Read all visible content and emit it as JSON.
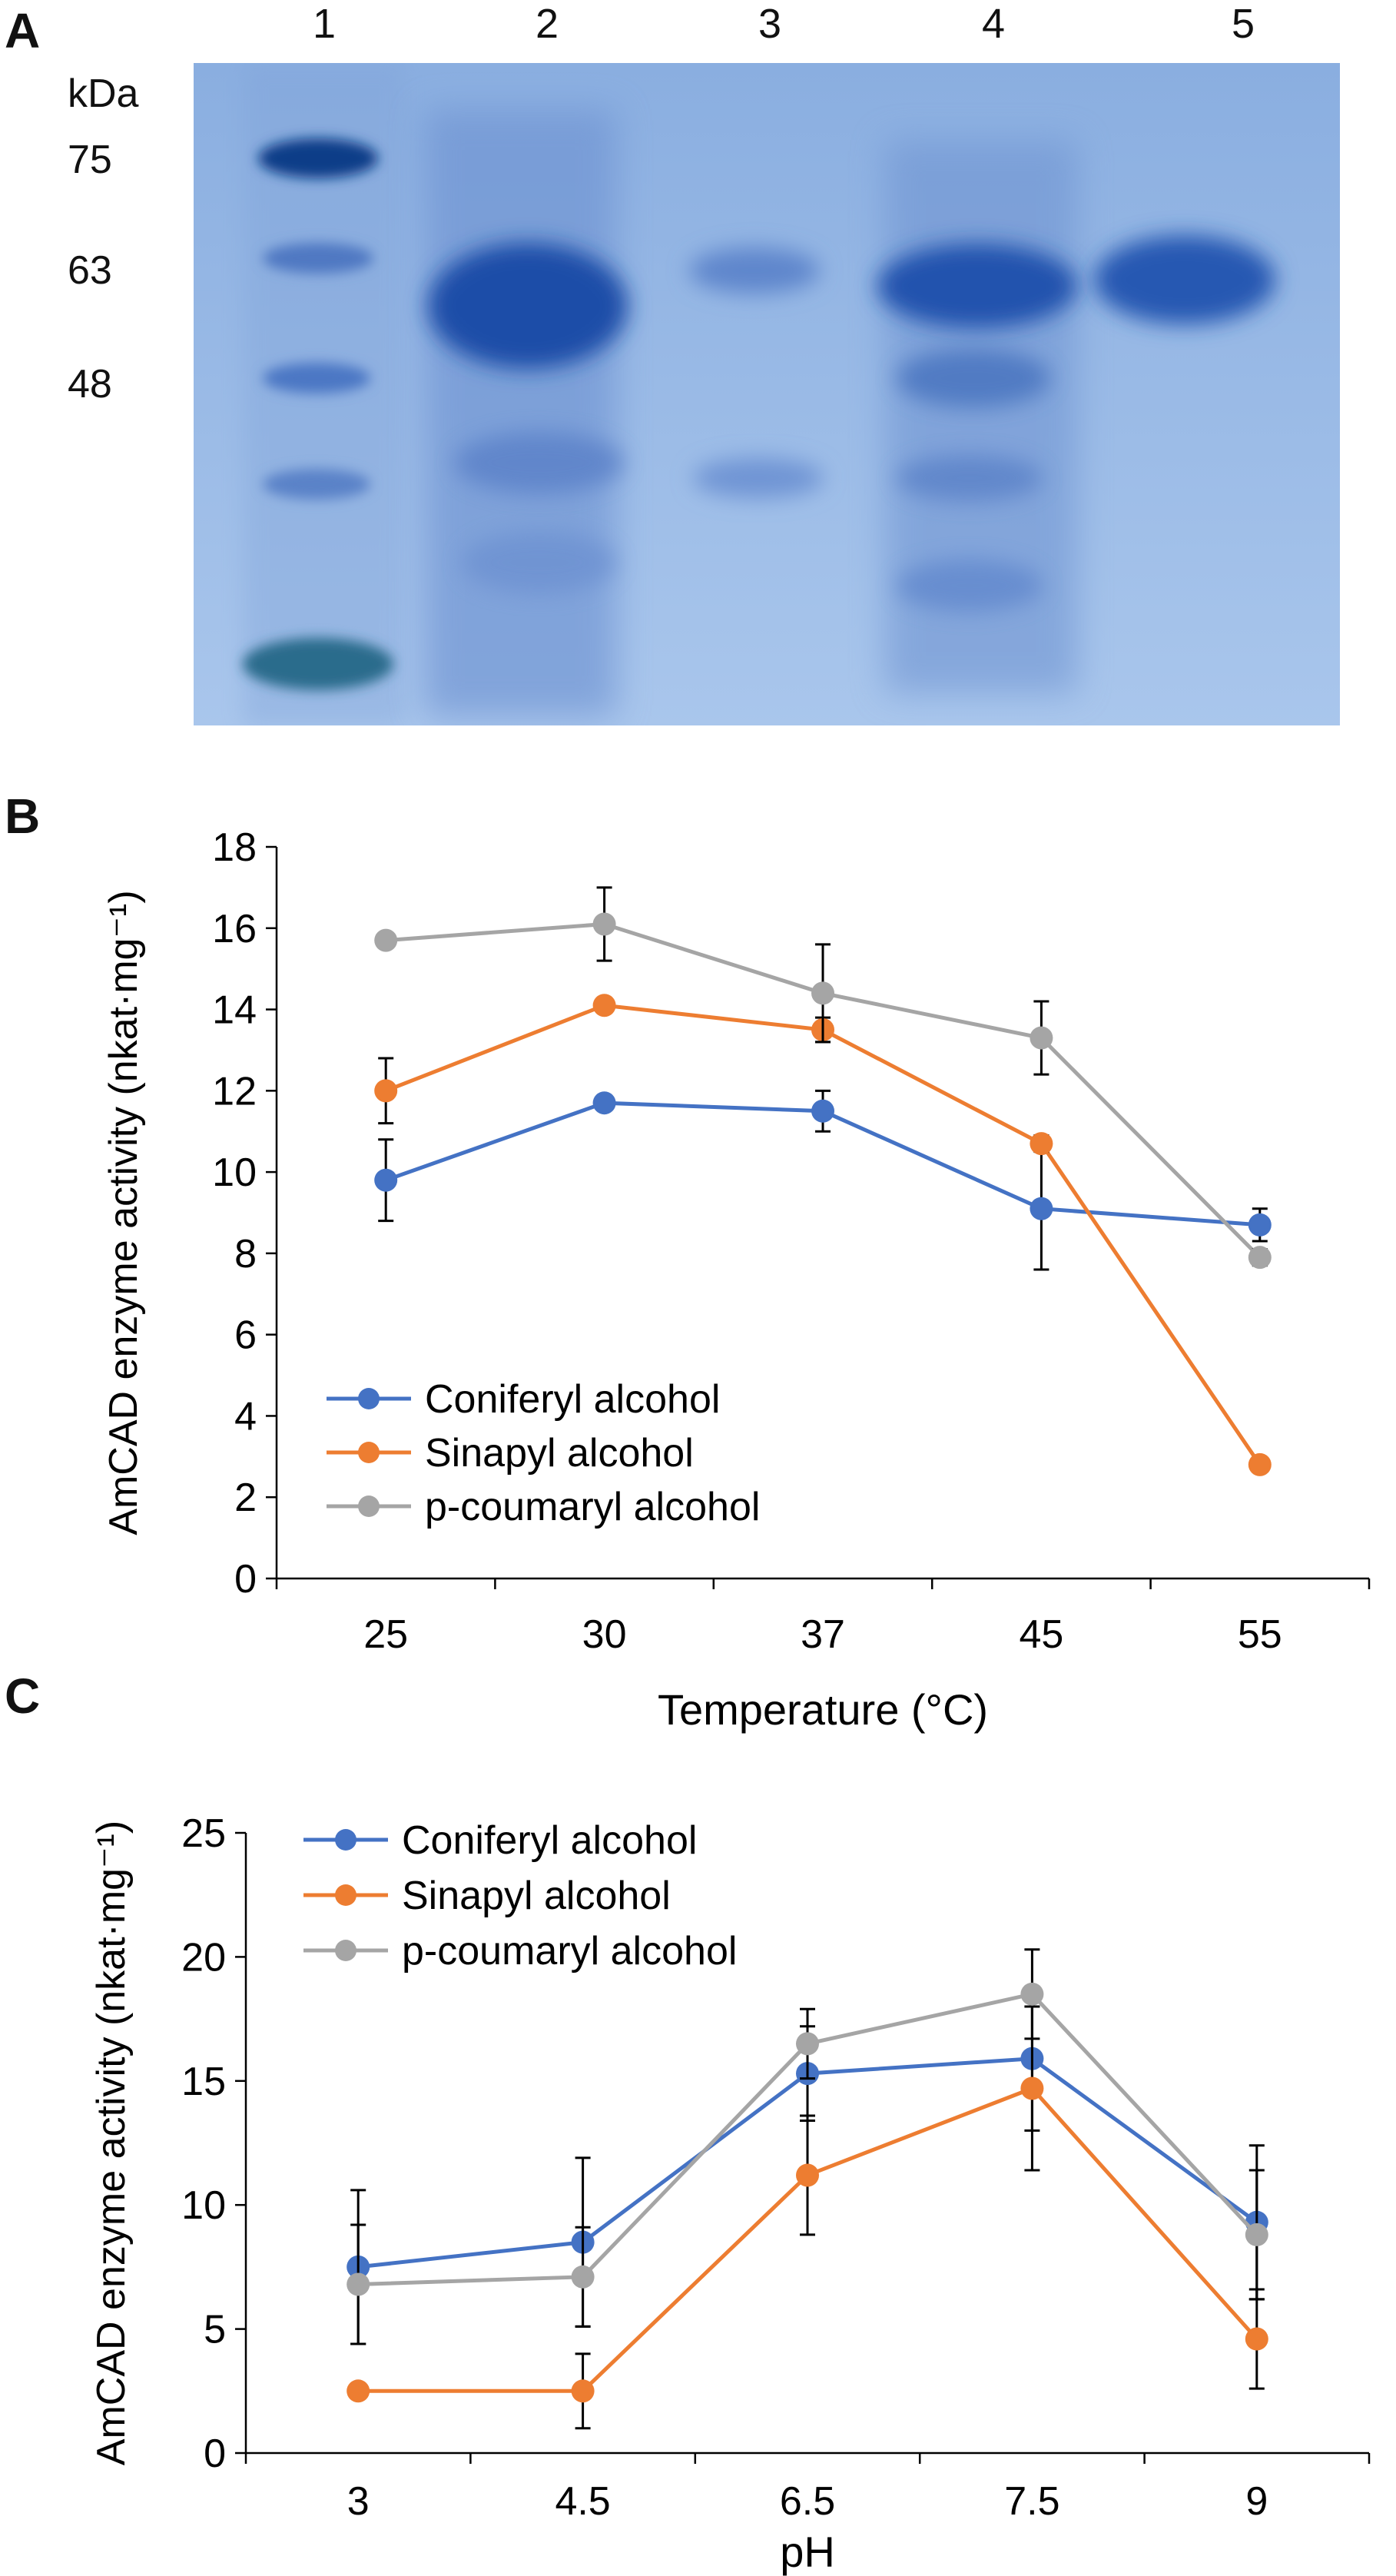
{
  "panel_a": {
    "letter": "A",
    "lane_labels": [
      "1",
      "2",
      "3",
      "4",
      "5"
    ],
    "unit_label": "kDa",
    "marker_labels": [
      "75",
      "63",
      "48"
    ]
  },
  "chart_data": [
    {
      "panel": "B",
      "type": "line",
      "xlabel": "Temperature (°C)",
      "ylabel": "AmCAD enzyme activity (nkat·mg⁻¹)",
      "categories": [
        "25",
        "30",
        "37",
        "45",
        "55"
      ],
      "ylim": [
        0,
        18
      ],
      "yticks": [
        "0",
        "2",
        "4",
        "6",
        "8",
        "10",
        "12",
        "14",
        "16",
        "18"
      ],
      "grid": false,
      "legend_position": "bottom-left",
      "series": [
        {
          "name": "Coniferyl alcohol",
          "color": "#4472c4",
          "values": [
            9.8,
            11.7,
            11.5,
            9.1,
            8.7
          ],
          "errors": [
            1.0,
            0.1,
            0.5,
            1.5,
            0.4
          ]
        },
        {
          "name": "Sinapyl alcohol",
          "color": "#ed7d31",
          "values": [
            12.0,
            14.1,
            13.5,
            10.7,
            2.8
          ],
          "errors": [
            0.8,
            0.1,
            0.3,
            0.2,
            0.1
          ]
        },
        {
          "name": "p-coumaryl alcohol",
          "color": "#a5a5a5",
          "values": [
            15.7,
            16.1,
            14.4,
            13.3,
            7.9
          ],
          "errors": [
            0.1,
            0.9,
            1.2,
            0.9,
            0.2
          ]
        }
      ]
    },
    {
      "panel": "C",
      "type": "line",
      "xlabel": "pH",
      "ylabel": "AmCAD enzyme activity (nkat·mg⁻¹)",
      "categories": [
        "3",
        "4.5",
        "6.5",
        "7.5",
        "9"
      ],
      "ylim": [
        0,
        25
      ],
      "yticks": [
        "0",
        "5",
        "10",
        "15",
        "20",
        "25"
      ],
      "grid": false,
      "legend_position": "top-left",
      "series": [
        {
          "name": "Coniferyl alcohol",
          "color": "#4472c4",
          "values": [
            7.5,
            8.5,
            15.3,
            15.9,
            9.3
          ],
          "errors": [
            3.1,
            3.4,
            1.9,
            2.9,
            3.1
          ]
        },
        {
          "name": "Sinapyl alcohol",
          "color": "#ed7d31",
          "values": [
            2.5,
            2.5,
            11.2,
            14.7,
            4.6
          ],
          "errors": [
            0.1,
            1.5,
            2.4,
            3.3,
            2.0
          ]
        },
        {
          "name": "p-coumaryl alcohol",
          "color": "#a5a5a5",
          "values": [
            6.8,
            7.1,
            16.5,
            18.5,
            8.8
          ],
          "errors": [
            2.4,
            2.0,
            1.4,
            1.8,
            2.6
          ]
        }
      ]
    }
  ]
}
